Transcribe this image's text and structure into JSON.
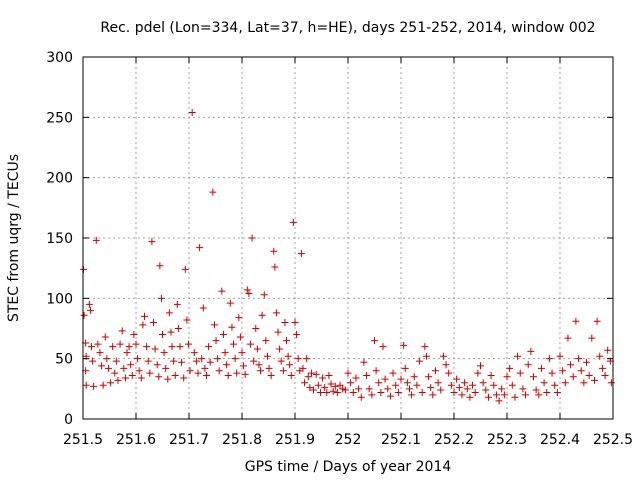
{
  "chart_data": {
    "type": "scatter",
    "title": "Rec. pdel (Lon=334, Lat=37, h=HE), days 251-252, 2014, window 002",
    "xlabel": "GPS time / Days of year 2014",
    "ylabel": "STEC from uqrg / TECUs",
    "xlim": [
      251.5,
      252.5
    ],
    "ylim": [
      0,
      300
    ],
    "grid": true,
    "legend": "none",
    "marker": "plus",
    "color": "#cc0000",
    "x_ticks": [
      251.5,
      251.6,
      251.7,
      251.8,
      251.9,
      252.0,
      252.1,
      252.2,
      252.3,
      252.4,
      252.5
    ],
    "x_tick_labels": [
      "251.5",
      "251.6",
      "251.7",
      "251.8",
      "251.9",
      "252",
      "252.1",
      "252.2",
      "252.3",
      "252.4",
      "252.5"
    ],
    "y_ticks": [
      0,
      50,
      100,
      150,
      200,
      250,
      300
    ],
    "y_tick_labels": [
      "0",
      "50",
      "100",
      "150",
      "200",
      "250",
      "300"
    ],
    "series": [
      {
        "points": [
          [
            251.501,
            124
          ],
          [
            251.502,
            86
          ],
          [
            251.505,
            63
          ],
          [
            251.506,
            52
          ],
          [
            251.505,
            40
          ],
          [
            251.506,
            28
          ],
          [
            251.512,
            95
          ],
          [
            251.514,
            90
          ],
          [
            251.516,
            60
          ],
          [
            251.518,
            48
          ],
          [
            251.52,
            27
          ],
          [
            251.525,
            148
          ],
          [
            251.528,
            62
          ],
          [
            251.532,
            55
          ],
          [
            251.535,
            44
          ],
          [
            251.538,
            28
          ],
          [
            251.542,
            68
          ],
          [
            251.545,
            50
          ],
          [
            251.548,
            42
          ],
          [
            251.552,
            30
          ],
          [
            251.556,
            60
          ],
          [
            251.56,
            38
          ],
          [
            251.563,
            48
          ],
          [
            251.566,
            32
          ],
          [
            251.57,
            62
          ],
          [
            251.574,
            73
          ],
          [
            251.577,
            42
          ],
          [
            251.58,
            34
          ],
          [
            251.583,
            55
          ],
          [
            251.587,
            60
          ],
          [
            251.59,
            45
          ],
          [
            251.593,
            36
          ],
          [
            251.596,
            70
          ],
          [
            251.6,
            62
          ],
          [
            251.603,
            50
          ],
          [
            251.606,
            40
          ],
          [
            251.61,
            34
          ],
          [
            251.613,
            78
          ],
          [
            251.616,
            85
          ],
          [
            251.62,
            60
          ],
          [
            251.623,
            48
          ],
          [
            251.626,
            38
          ],
          [
            251.63,
            147
          ],
          [
            251.633,
            80
          ],
          [
            251.636,
            58
          ],
          [
            251.64,
            45
          ],
          [
            251.643,
            35
          ],
          [
            251.645,
            127
          ],
          [
            251.648,
            100
          ],
          [
            251.65,
            70
          ],
          [
            251.653,
            55
          ],
          [
            251.656,
            42
          ],
          [
            251.66,
            33
          ],
          [
            251.663,
            88
          ],
          [
            251.666,
            72
          ],
          [
            251.668,
            60
          ],
          [
            251.671,
            48
          ],
          [
            251.674,
            36
          ],
          [
            251.678,
            95
          ],
          [
            251.68,
            75
          ],
          [
            251.683,
            60
          ],
          [
            251.686,
            47
          ],
          [
            251.69,
            34
          ],
          [
            251.693,
            124
          ],
          [
            251.696,
            82
          ],
          [
            251.699,
            62
          ],
          [
            251.702,
            40
          ],
          [
            251.706,
            254
          ],
          [
            251.71,
            55
          ],
          [
            251.714,
            48
          ],
          [
            251.717,
            38
          ],
          [
            251.72,
            142
          ],
          [
            251.724,
            50
          ],
          [
            251.727,
            92
          ],
          [
            251.73,
            42
          ],
          [
            251.733,
            36
          ],
          [
            251.737,
            60
          ],
          [
            251.74,
            47
          ],
          [
            251.745,
            188
          ],
          [
            251.748,
            78
          ],
          [
            251.751,
            65
          ],
          [
            251.754,
            50
          ],
          [
            251.757,
            40
          ],
          [
            251.762,
            106
          ],
          [
            251.765,
            70
          ],
          [
            251.768,
            55
          ],
          [
            251.771,
            45
          ],
          [
            251.774,
            36
          ],
          [
            251.778,
            96
          ],
          [
            251.781,
            76
          ],
          [
            251.784,
            62
          ],
          [
            251.787,
            50
          ],
          [
            251.79,
            38
          ],
          [
            251.794,
            84
          ],
          [
            251.797,
            68
          ],
          [
            251.8,
            55
          ],
          [
            251.803,
            44
          ],
          [
            251.806,
            37
          ],
          [
            251.81,
            107
          ],
          [
            251.813,
            104
          ],
          [
            251.816,
            62
          ],
          [
            251.819,
            150
          ],
          [
            251.822,
            48
          ],
          [
            251.826,
            75
          ],
          [
            251.829,
            58
          ],
          [
            251.832,
            45
          ],
          [
            251.835,
            40
          ],
          [
            251.838,
            86
          ],
          [
            251.842,
            103
          ],
          [
            251.845,
            65
          ],
          [
            251.848,
            52
          ],
          [
            251.851,
            42
          ],
          [
            251.855,
            36
          ],
          [
            251.86,
            139
          ],
          [
            251.862,
            126
          ],
          [
            251.865,
            88
          ],
          [
            251.868,
            72
          ],
          [
            251.871,
            58
          ],
          [
            251.874,
            48
          ],
          [
            251.878,
            40
          ],
          [
            251.881,
            80
          ],
          [
            251.884,
            65
          ],
          [
            251.887,
            52
          ],
          [
            251.89,
            45
          ],
          [
            251.893,
            36
          ],
          [
            251.897,
            163
          ],
          [
            251.9,
            80
          ],
          [
            251.903,
            70
          ],
          [
            251.906,
            50
          ],
          [
            251.909,
            40
          ],
          [
            251.912,
            137
          ],
          [
            251.915,
            42
          ],
          [
            251.918,
            30
          ],
          [
            251.922,
            50
          ],
          [
            251.925,
            35
          ],
          [
            251.928,
            26
          ],
          [
            251.931,
            38
          ],
          [
            251.935,
            24
          ],
          [
            251.94,
            37
          ],
          [
            251.944,
            28
          ],
          [
            251.948,
            22
          ],
          [
            251.952,
            34
          ],
          [
            251.956,
            26
          ],
          [
            251.96,
            22
          ],
          [
            251.964,
            36
          ],
          [
            251.968,
            29
          ],
          [
            251.972,
            23
          ],
          [
            251.976,
            27
          ],
          [
            251.98,
            22
          ],
          [
            251.985,
            28
          ],
          [
            251.99,
            25
          ],
          [
            251.995,
            24
          ],
          [
            252.0,
            38
          ],
          [
            252.005,
            30
          ],
          [
            252.01,
            22
          ],
          [
            252.015,
            34
          ],
          [
            252.02,
            25
          ],
          [
            252.025,
            18
          ],
          [
            252.03,
            47
          ],
          [
            252.035,
            36
          ],
          [
            252.04,
            25
          ],
          [
            252.045,
            20
          ],
          [
            252.05,
            65
          ],
          [
            252.053,
            40
          ],
          [
            252.058,
            30
          ],
          [
            252.062,
            22
          ],
          [
            252.066,
            60
          ],
          [
            252.07,
            33
          ],
          [
            252.075,
            25
          ],
          [
            252.08,
            19
          ],
          [
            252.085,
            38
          ],
          [
            252.09,
            28
          ],
          [
            252.095,
            22
          ],
          [
            252.1,
            33
          ],
          [
            252.105,
            61
          ],
          [
            252.108,
            42
          ],
          [
            252.112,
            30
          ],
          [
            252.116,
            25
          ],
          [
            252.12,
            20
          ],
          [
            252.125,
            35
          ],
          [
            252.13,
            28
          ],
          [
            252.135,
            48
          ],
          [
            252.14,
            22
          ],
          [
            252.145,
            60
          ],
          [
            252.148,
            52
          ],
          [
            252.152,
            35
          ],
          [
            252.156,
            26
          ],
          [
            252.16,
            20
          ],
          [
            252.165,
            40
          ],
          [
            252.17,
            30
          ],
          [
            252.175,
            24
          ],
          [
            252.18,
            52
          ],
          [
            252.185,
            45
          ],
          [
            252.19,
            38
          ],
          [
            252.195,
            28
          ],
          [
            252.2,
            22
          ],
          [
            252.205,
            33
          ],
          [
            252.21,
            26
          ],
          [
            252.215,
            20
          ],
          [
            252.22,
            30
          ],
          [
            252.225,
            25
          ],
          [
            252.23,
            18
          ],
          [
            252.235,
            28
          ],
          [
            252.24,
            22
          ],
          [
            252.245,
            38
          ],
          [
            252.25,
            44
          ],
          [
            252.255,
            30
          ],
          [
            252.26,
            24
          ],
          [
            252.265,
            18
          ],
          [
            252.27,
            36
          ],
          [
            252.275,
            28
          ],
          [
            252.28,
            20
          ],
          [
            252.285,
            15
          ],
          [
            252.29,
            25
          ],
          [
            252.295,
            20
          ],
          [
            252.3,
            35
          ],
          [
            252.305,
            42
          ],
          [
            252.31,
            28
          ],
          [
            252.315,
            18
          ],
          [
            252.32,
            52
          ],
          [
            252.325,
            38
          ],
          [
            252.33,
            25
          ],
          [
            252.335,
            20
          ],
          [
            252.34,
            45
          ],
          [
            252.345,
            56
          ],
          [
            252.35,
            35
          ],
          [
            252.355,
            24
          ],
          [
            252.36,
            20
          ],
          [
            252.365,
            42
          ],
          [
            252.37,
            30
          ],
          [
            252.375,
            22
          ],
          [
            252.38,
            50
          ],
          [
            252.385,
            38
          ],
          [
            252.39,
            28
          ],
          [
            252.395,
            22
          ],
          [
            252.4,
            52
          ],
          [
            252.405,
            40
          ],
          [
            252.41,
            30
          ],
          [
            252.415,
            67
          ],
          [
            252.42,
            45
          ],
          [
            252.425,
            35
          ],
          [
            252.43,
            81
          ],
          [
            252.435,
            50
          ],
          [
            252.44,
            40
          ],
          [
            252.445,
            30
          ],
          [
            252.45,
            47
          ],
          [
            252.455,
            36
          ],
          [
            252.46,
            67
          ],
          [
            252.465,
            32
          ],
          [
            252.47,
            81
          ],
          [
            252.475,
            52
          ],
          [
            252.48,
            42
          ],
          [
            252.485,
            36
          ],
          [
            252.49,
            57
          ],
          [
            252.495,
            48
          ],
          [
            252.497,
            30
          ]
        ]
      }
    ]
  }
}
